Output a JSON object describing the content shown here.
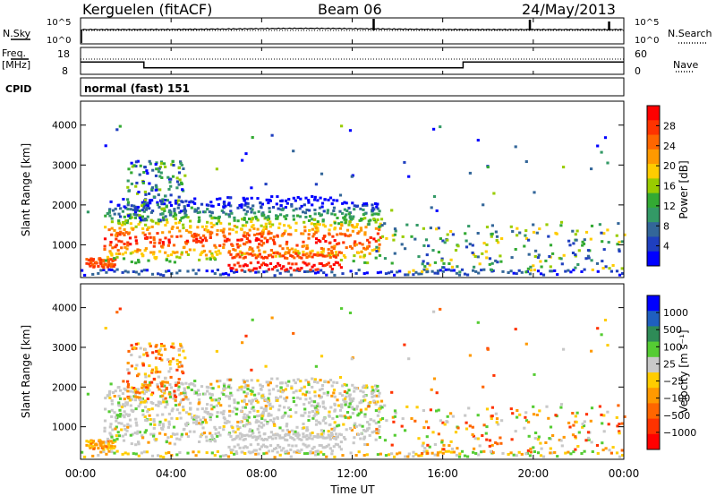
{
  "header": {
    "station": "Kerguelen (fitACF)",
    "beam": "Beam 06",
    "date": "24/May/2013"
  },
  "noise_panel": {
    "left_label": "N.Sky",
    "right_label": "N.Search",
    "tick_top": "10^5",
    "tick_bottom": "10^0"
  },
  "freq_panel": {
    "left_label_1": "Freq.",
    "left_label_2": "[MHz]",
    "right_label": "Nave",
    "left_ticks": [
      "18",
      "8"
    ],
    "right_ticks": [
      "60",
      "0"
    ]
  },
  "cpid": {
    "label": "CPID",
    "value": "normal (fast) 151"
  },
  "power_colorbar": {
    "label": "Power [dB]",
    "ticks": [
      "28",
      "24",
      "20",
      "16",
      "12",
      "8",
      "4"
    ],
    "colors": [
      "#ff0000",
      "#ff3300",
      "#ff6600",
      "#ff9900",
      "#ffcc00",
      "#99cc00",
      "#33aa33",
      "#339966",
      "#336699",
      "#1f3fbf",
      "#0000ff"
    ]
  },
  "velocity_colorbar": {
    "label": "Velocity [m s⁻¹]",
    "ticks": [
      "1000",
      "500",
      "100",
      "25",
      "−25",
      "−100",
      "−500",
      "−1000"
    ],
    "colors": [
      "#0000ff",
      "#1f5fbf",
      "#2e8b57",
      "#55cc33",
      "#c8c8c8",
      "#ffcc00",
      "#ff9900",
      "#ff6600",
      "#ff3300",
      "#ff0000"
    ]
  },
  "chart_data": [
    {
      "type": "heatmap",
      "title": "Power",
      "ylabel": "Slant Range [km]",
      "xlabel": "Time UT",
      "x_ticks": [
        "00:00",
        "04:00",
        "08:00",
        "12:00",
        "16:00",
        "20:00",
        "00:00"
      ],
      "y_ticks": [
        "1000",
        "2000",
        "3000",
        "4000"
      ],
      "ylim": [
        180,
        4600
      ],
      "xlim_hours": [
        0,
        24
      ],
      "colorbar_range_dB": [
        0,
        30
      ]
    },
    {
      "type": "heatmap",
      "title": "Velocity",
      "ylabel": "Slant Range [km]",
      "xlabel": "Time UT",
      "x_ticks": [
        "00:00",
        "04:00",
        "08:00",
        "12:00",
        "16:00",
        "20:00",
        "00:00"
      ],
      "y_ticks": [
        "1000",
        "2000",
        "3000",
        "4000"
      ],
      "ylim": [
        180,
        4600
      ],
      "xlim_hours": [
        0,
        24
      ],
      "colorbar_range_ms": [
        -1000,
        1000
      ]
    },
    {
      "type": "line",
      "title": "Frequency",
      "series": [
        {
          "name": "Freq.",
          "x": [
            0,
            2.8,
            2.8,
            16.9,
            16.9,
            24
          ],
          "y": [
            12.6,
            12.6,
            10.4,
            10.4,
            12.6,
            12.6
          ]
        }
      ],
      "ylim": [
        8,
        18
      ]
    }
  ],
  "x_axis": {
    "label": "Time UT",
    "ticks": [
      "00:00",
      "04:00",
      "08:00",
      "12:00",
      "16:00",
      "20:00",
      "00:00"
    ]
  }
}
